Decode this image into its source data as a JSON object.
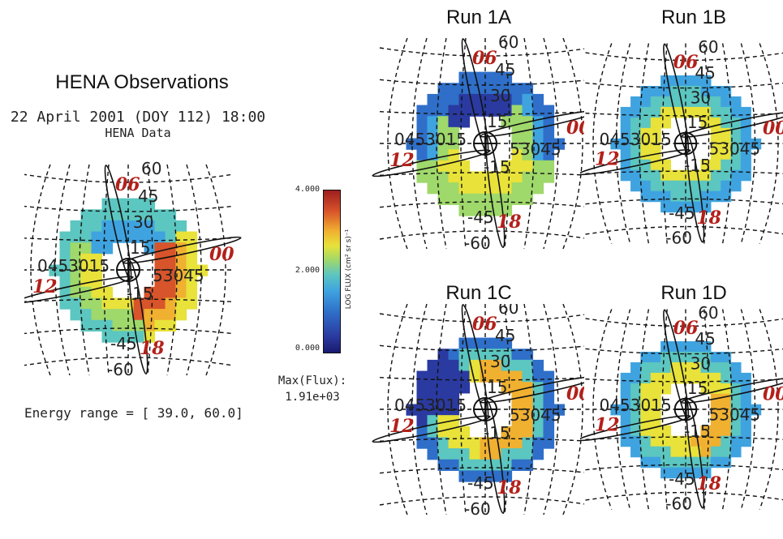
{
  "left_panel": {
    "title": "HENA Observations",
    "date_line": "22 April 2001 (DOY 112) 18:00",
    "data_line": "HENA Data",
    "energy_range": "Energy range = [ 39.0, 60.0]"
  },
  "colorbar": {
    "tick_top": "4.000",
    "tick_mid": "2.000",
    "tick_bottom": "0.000",
    "label": "LOG FLUX (cm² sr s)⁻¹",
    "max_flux_label": "Max(Flux):",
    "max_flux_value": "1.91e+03",
    "colors": [
      "#1a1a6e",
      "#2a3aa0",
      "#2f6fc9",
      "#3fa3e0",
      "#5cc6c0",
      "#9fd86b",
      "#e8e23a",
      "#f0b030",
      "#d8542a",
      "#9e1f1f"
    ]
  },
  "panels": [
    {
      "id": "hena",
      "title": ""
    },
    {
      "id": "run1a",
      "title": "Run 1A"
    },
    {
      "id": "run1b",
      "title": "Run 1B"
    },
    {
      "id": "run1c",
      "title": "Run 1C"
    },
    {
      "id": "run1d",
      "title": "Run 1D"
    }
  ],
  "grid_labels": {
    "lat_60": "60",
    "lat_45": "45",
    "lat_30": "30",
    "lat_15": "15",
    "lat_neg15": "-15",
    "lat_neg30": "-30",
    "lat_neg45": "-45",
    "lat_neg60": "-60",
    "lon_left": "0453015",
    "lon_right": "53045",
    "mlt_06": "06",
    "mlt_00": "00",
    "mlt_12": "12",
    "mlt_18": "18"
  }
}
